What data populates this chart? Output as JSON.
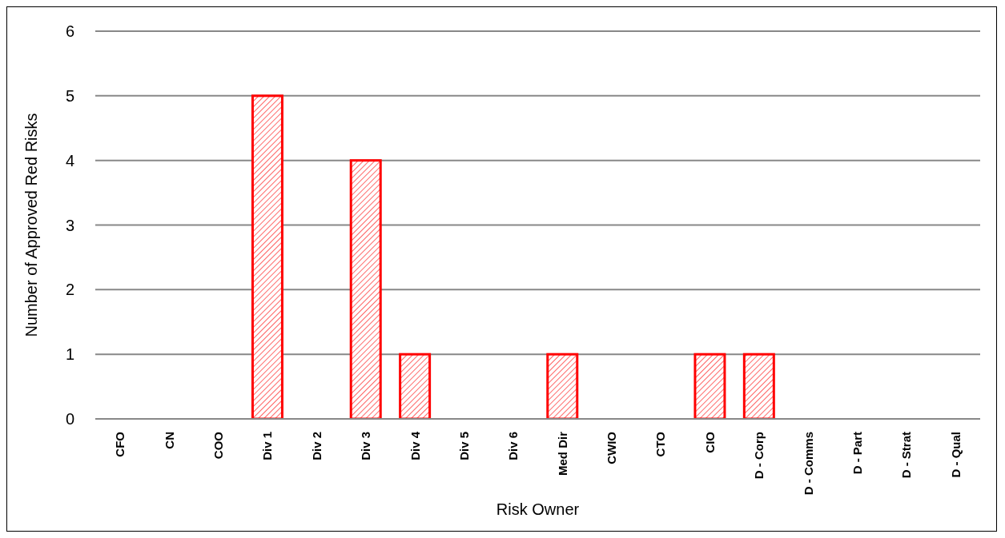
{
  "chart_data": {
    "type": "bar",
    "xlabel": "Risk Owner",
    "ylabel": "Number of Approved  Red Risks",
    "categories": [
      "CFO",
      "CN",
      "COO",
      "Div 1",
      "Div 2",
      "Div 3",
      "Div 4",
      "Div 5",
      "Div 6",
      "Med Dir",
      "CWIO",
      "CTO",
      "CIO",
      "D - Corp",
      "D - Comms",
      "D - Part",
      "D - Strat",
      "D - Qual"
    ],
    "values": [
      0,
      0,
      0,
      5,
      0,
      4,
      1,
      0,
      0,
      1,
      0,
      0,
      1,
      1,
      0,
      0,
      0,
      0
    ],
    "color": "#ff0000",
    "ylim": [
      0,
      6
    ],
    "yticks": [
      0,
      1,
      2,
      3,
      4,
      5,
      6
    ],
    "grid": "y",
    "legend": false
  }
}
